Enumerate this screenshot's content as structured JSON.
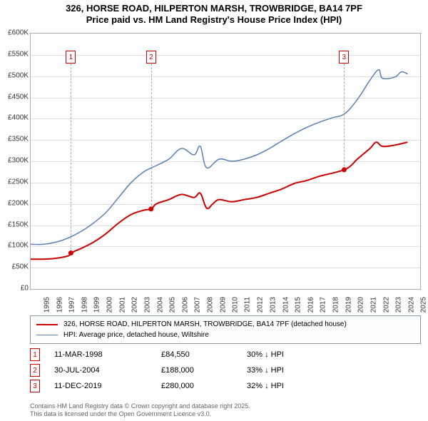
{
  "title": {
    "line1": "326, HORSE ROAD, HILPERTON MARSH, TROWBRIDGE, BA14 7PF",
    "line2": "Price paid vs. HM Land Registry's House Price Index (HPI)",
    "fontsize": 13,
    "color": "#000000"
  },
  "chart": {
    "type": "line",
    "background_color": "#ffffff",
    "grid_color": "#dddddd",
    "border_color": "#aaaaaa",
    "x": {
      "min": 1995,
      "max": 2026,
      "ticks": [
        1995,
        1996,
        1997,
        1998,
        1999,
        2000,
        2001,
        2002,
        2003,
        2004,
        2005,
        2006,
        2007,
        2008,
        2009,
        2010,
        2011,
        2012,
        2013,
        2014,
        2015,
        2016,
        2017,
        2018,
        2019,
        2020,
        2021,
        2022,
        2023,
        2024,
        2025
      ],
      "label_fontsize": 10
    },
    "y": {
      "min": 0,
      "max": 600000,
      "ticks": [
        0,
        50000,
        100000,
        150000,
        200000,
        250000,
        300000,
        350000,
        400000,
        450000,
        500000,
        550000,
        600000
      ],
      "tick_labels": [
        "£0",
        "£50K",
        "£100K",
        "£150K",
        "£200K",
        "£250K",
        "£300K",
        "£350K",
        "£400K",
        "£450K",
        "£500K",
        "£550K",
        "£600K"
      ],
      "label_fontsize": 10
    },
    "series": [
      {
        "id": "price_paid",
        "label": "326, HORSE ROAD, HILPERTON MARSH, TROWBRIDGE, BA14 7PF (detached house)",
        "color": "#cc0000",
        "line_width": 2,
        "points": [
          [
            1995.0,
            70000
          ],
          [
            1996.0,
            70000
          ],
          [
            1997.0,
            72000
          ],
          [
            1998.0,
            78000
          ],
          [
            1998.2,
            84550
          ],
          [
            1999.0,
            95000
          ],
          [
            2000.0,
            110000
          ],
          [
            2001.0,
            130000
          ],
          [
            2002.0,
            155000
          ],
          [
            2003.0,
            175000
          ],
          [
            2004.0,
            185000
          ],
          [
            2004.6,
            188000
          ],
          [
            2005.0,
            200000
          ],
          [
            2006.0,
            210000
          ],
          [
            2007.0,
            222000
          ],
          [
            2008.0,
            215000
          ],
          [
            2008.5,
            225000
          ],
          [
            2009.0,
            190000
          ],
          [
            2009.5,
            200000
          ],
          [
            2010.0,
            210000
          ],
          [
            2011.0,
            205000
          ],
          [
            2012.0,
            210000
          ],
          [
            2013.0,
            215000
          ],
          [
            2014.0,
            225000
          ],
          [
            2015.0,
            235000
          ],
          [
            2016.0,
            248000
          ],
          [
            2017.0,
            255000
          ],
          [
            2018.0,
            265000
          ],
          [
            2019.0,
            272000
          ],
          [
            2019.95,
            280000
          ],
          [
            2020.5,
            290000
          ],
          [
            2021.0,
            305000
          ],
          [
            2022.0,
            330000
          ],
          [
            2022.5,
            345000
          ],
          [
            2023.0,
            335000
          ],
          [
            2024.0,
            338000
          ],
          [
            2025.0,
            345000
          ]
        ]
      },
      {
        "id": "hpi",
        "label": "HPI: Average price, detached house, Wiltshire",
        "color": "#5b7fb4",
        "line_width": 1.5,
        "points": [
          [
            1995.0,
            105000
          ],
          [
            1996.0,
            105000
          ],
          [
            1997.0,
            110000
          ],
          [
            1998.0,
            120000
          ],
          [
            1999.0,
            135000
          ],
          [
            2000.0,
            155000
          ],
          [
            2001.0,
            180000
          ],
          [
            2002.0,
            215000
          ],
          [
            2003.0,
            250000
          ],
          [
            2004.0,
            275000
          ],
          [
            2005.0,
            290000
          ],
          [
            2006.0,
            305000
          ],
          [
            2007.0,
            330000
          ],
          [
            2008.0,
            315000
          ],
          [
            2008.5,
            335000
          ],
          [
            2009.0,
            285000
          ],
          [
            2010.0,
            305000
          ],
          [
            2011.0,
            300000
          ],
          [
            2012.0,
            305000
          ],
          [
            2013.0,
            315000
          ],
          [
            2014.0,
            330000
          ],
          [
            2015.0,
            348000
          ],
          [
            2016.0,
            365000
          ],
          [
            2017.0,
            380000
          ],
          [
            2018.0,
            392000
          ],
          [
            2019.0,
            402000
          ],
          [
            2020.0,
            412000
          ],
          [
            2021.0,
            445000
          ],
          [
            2022.0,
            490000
          ],
          [
            2022.7,
            515000
          ],
          [
            2023.0,
            495000
          ],
          [
            2024.0,
            498000
          ],
          [
            2024.5,
            510000
          ],
          [
            2025.0,
            505000
          ]
        ]
      }
    ],
    "markers": [
      {
        "num": "1",
        "x": 1998.2,
        "top_y": 560000
      },
      {
        "num": "2",
        "x": 2004.58,
        "top_y": 560000
      },
      {
        "num": "3",
        "x": 2019.95,
        "top_y": 560000
      }
    ]
  },
  "legend": {
    "border_color": "#8899aa",
    "rows": [
      {
        "color": "#cc0000",
        "width": 2,
        "text": "326, HORSE ROAD, HILPERTON MARSH, TROWBRIDGE, BA14 7PF (detached house)"
      },
      {
        "color": "#5b7fb4",
        "width": 1.5,
        "text": "HPI: Average price, detached house, Wiltshire"
      }
    ]
  },
  "sales": [
    {
      "num": "1",
      "date": "11-MAR-1998",
      "price": "£84,550",
      "delta": "30% ↓ HPI"
    },
    {
      "num": "2",
      "date": "30-JUL-2004",
      "price": "£188,000",
      "delta": "33% ↓ HPI"
    },
    {
      "num": "3",
      "date": "11-DEC-2019",
      "price": "£280,000",
      "delta": "32% ↓ HPI"
    }
  ],
  "footnote": {
    "line1": "Contains HM Land Registry data © Crown copyright and database right 2025.",
    "line2": "This data is licensed under the Open Government Licence v3.0.",
    "color": "#666666",
    "fontsize": 9
  }
}
